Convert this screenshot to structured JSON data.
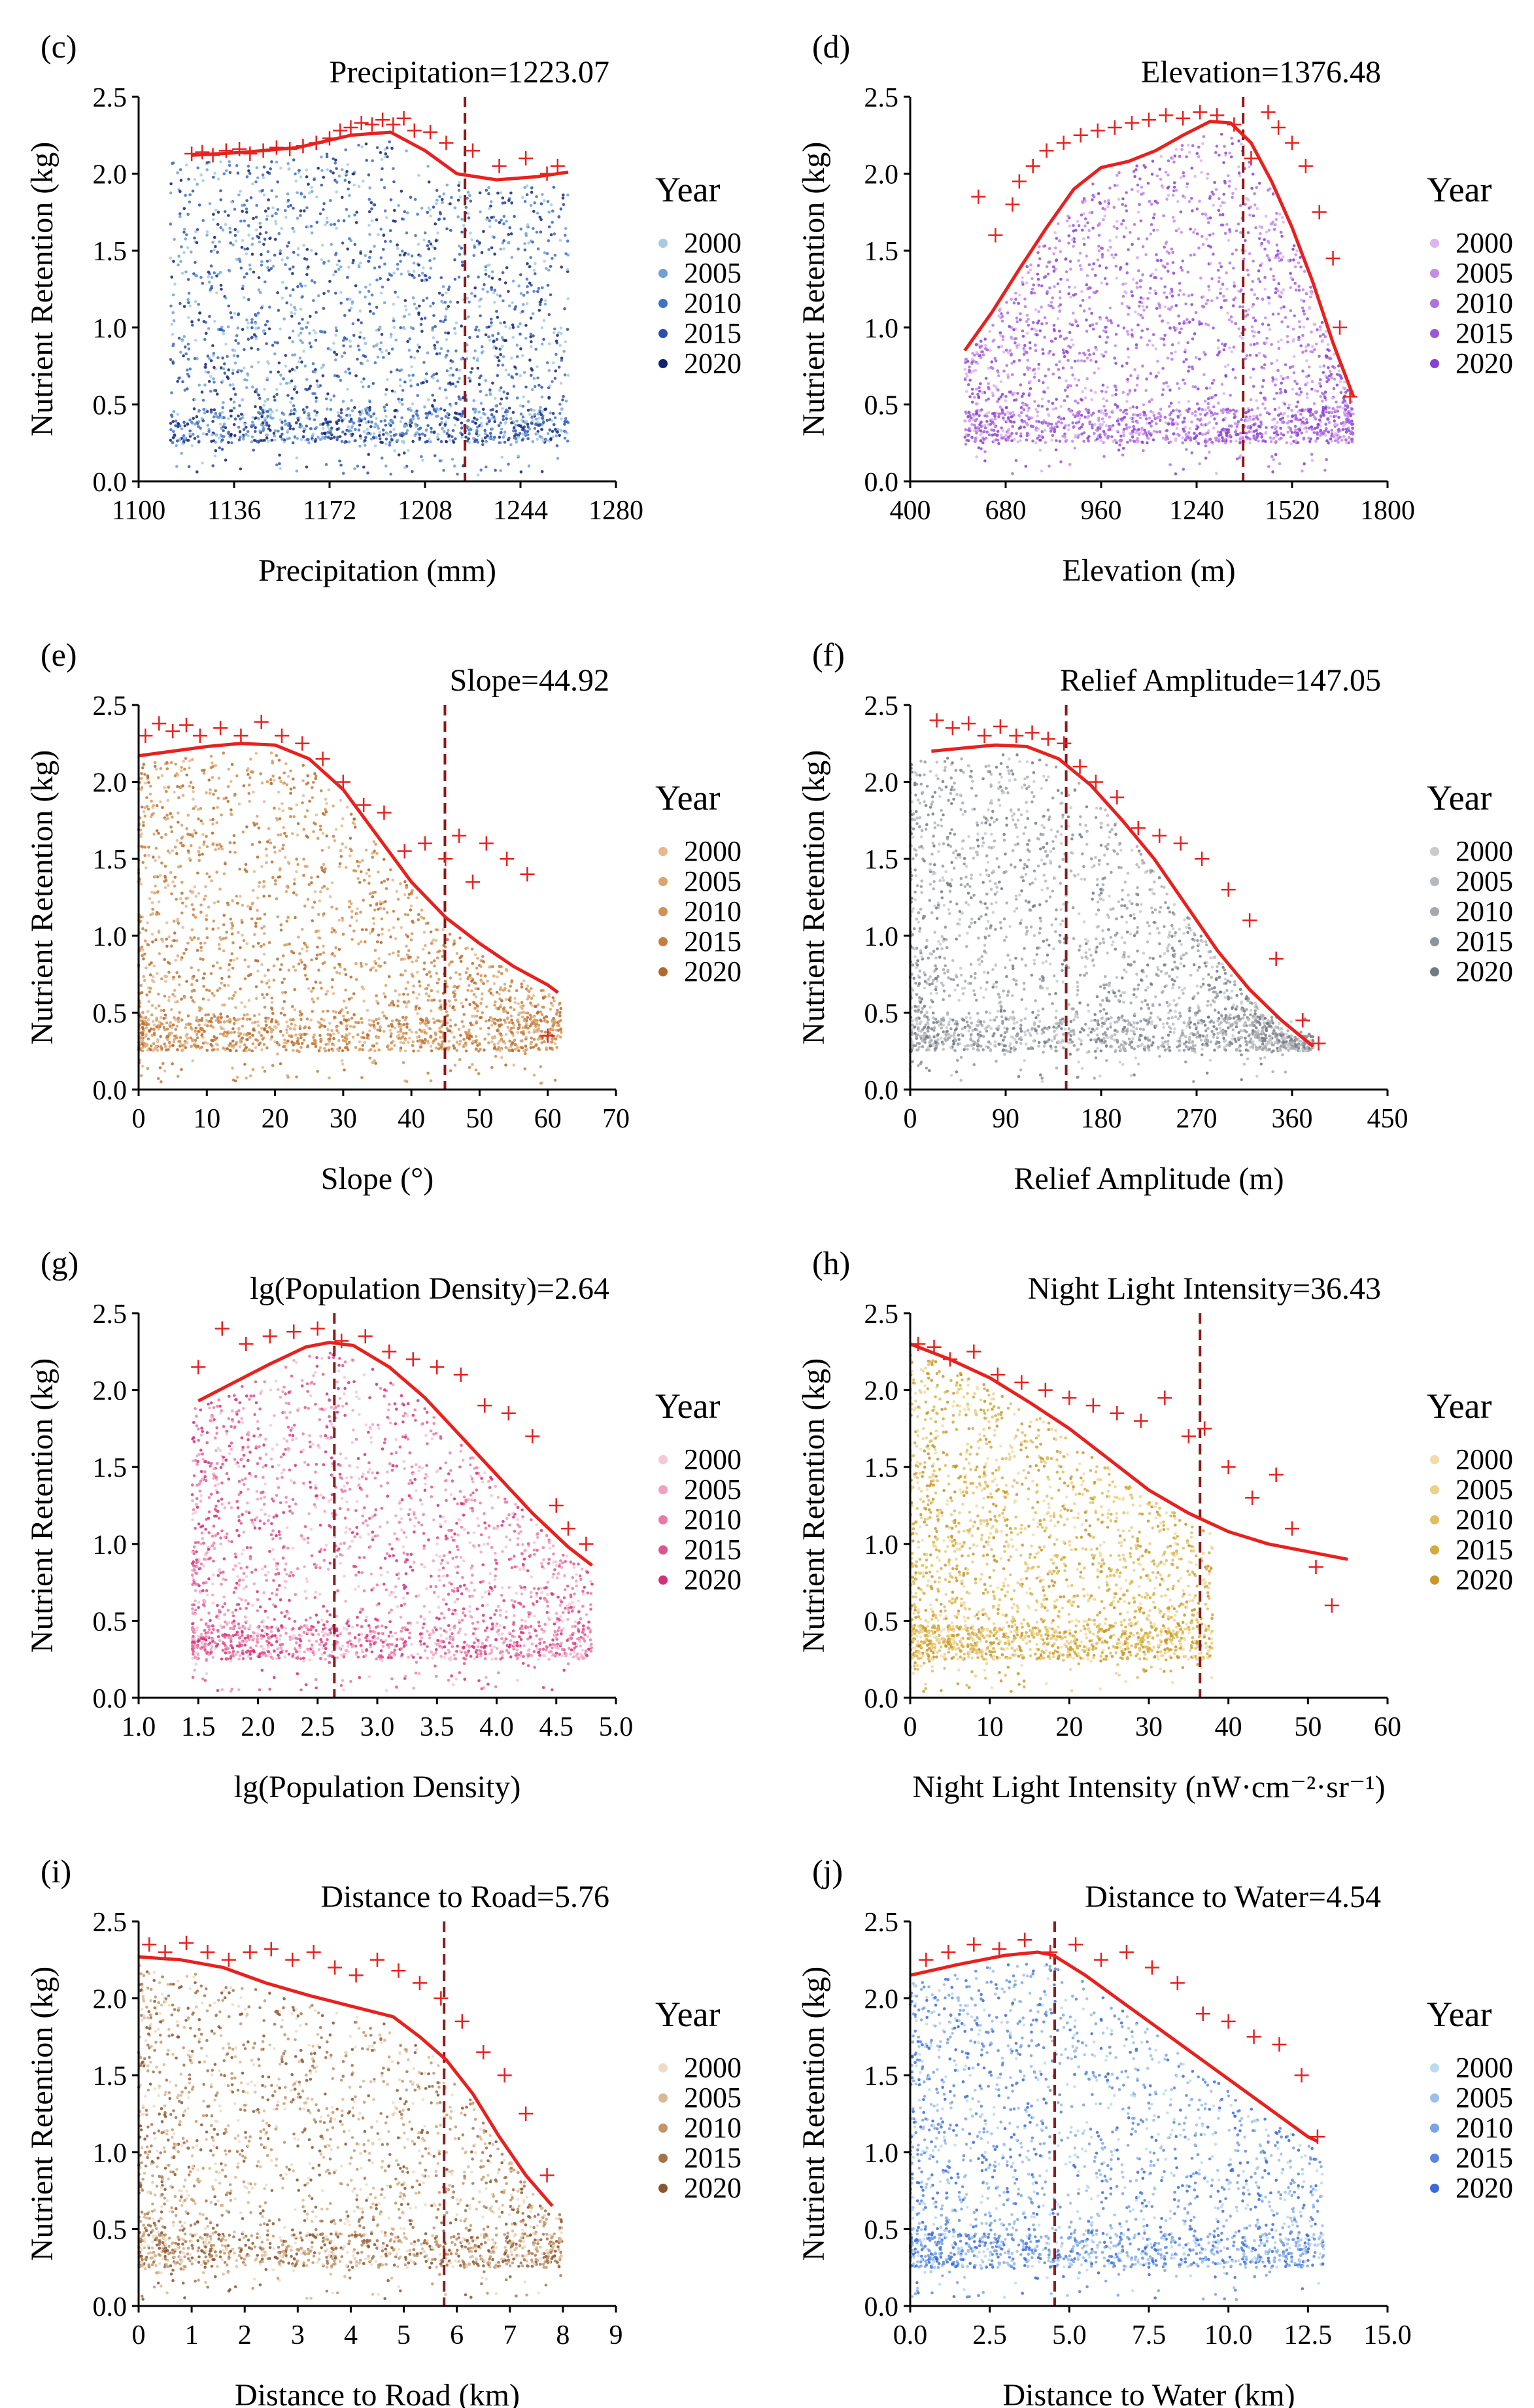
{
  "figure": {
    "ylabel_common": "Nutrient Retention (kg)",
    "legend_title": "Year",
    "years": [
      "2000",
      "2005",
      "2010",
      "2015",
      "2020"
    ],
    "colors": {
      "fit_line": "#e8211f",
      "outlier": "#e8211f",
      "threshold": "#8b1a1a"
    }
  },
  "chart_data": [
    {
      "id": "c",
      "panel_label": "(c)",
      "type": "scatter",
      "title": "Precipitation=1223.07",
      "xlabel": "Precipitation (mm)",
      "ylabel": "Nutrient Retention (kg)",
      "xlim": [
        1100,
        1280
      ],
      "xticks": [
        1100,
        1136,
        1172,
        1208,
        1244,
        1280
      ],
      "xtick_labels": [
        "1100",
        "1136",
        "1172",
        "1208",
        "1244",
        "1280"
      ],
      "ylim": [
        0,
        2.5
      ],
      "yticks": [
        0,
        0.5,
        1,
        1.5,
        2,
        2.5
      ],
      "ytick_labels": [
        "0.0",
        "0.5",
        "1.0",
        "1.5",
        "2.0",
        "2.5"
      ],
      "threshold": 1223.07,
      "point_range": [
        1112,
        1262
      ],
      "legend_colors": [
        "#a6cbe3",
        "#6fa1d6",
        "#4270c4",
        "#2c4ea8",
        "#14236e"
      ],
      "fit_line": {
        "x": [
          1120,
          1140,
          1160,
          1180,
          1195,
          1208,
          1220,
          1235,
          1250,
          1262
        ],
        "y": [
          2.12,
          2.14,
          2.17,
          2.25,
          2.27,
          2.15,
          2.0,
          1.96,
          1.98,
          2.01
        ]
      },
      "outliers": {
        "x": [
          1120,
          1124,
          1128,
          1133,
          1138,
          1142,
          1147,
          1152,
          1157,
          1162,
          1167,
          1172,
          1176,
          1180,
          1184,
          1188,
          1192,
          1196,
          1200,
          1204,
          1210,
          1216,
          1226,
          1236,
          1246,
          1254,
          1258
        ],
        "y": [
          2.13,
          2.14,
          2.12,
          2.15,
          2.16,
          2.13,
          2.15,
          2.17,
          2.16,
          2.18,
          2.2,
          2.23,
          2.28,
          2.3,
          2.33,
          2.32,
          2.35,
          2.32,
          2.36,
          2.28,
          2.27,
          2.2,
          2.15,
          2.05,
          2.1,
          2.0,
          2.05
        ]
      }
    },
    {
      "id": "d",
      "panel_label": "(d)",
      "type": "scatter",
      "title": "Elevation=1376.48",
      "xlabel": "Elevation (m)",
      "ylabel": "Nutrient Retention (kg)",
      "xlim": [
        400,
        1800
      ],
      "xticks": [
        400,
        680,
        960,
        1240,
        1520,
        1800
      ],
      "xtick_labels": [
        "400",
        "680",
        "960",
        "1240",
        "1520",
        "1800"
      ],
      "ylim": [
        0,
        2.5
      ],
      "yticks": [
        0,
        0.5,
        1,
        1.5,
        2,
        2.5
      ],
      "ytick_labels": [
        "0.0",
        "0.5",
        "1.0",
        "1.5",
        "2.0",
        "2.5"
      ],
      "threshold": 1376.48,
      "point_range": [
        560,
        1700
      ],
      "legend_colors": [
        "#dcb4ee",
        "#c58be6",
        "#b16fe0",
        "#9b57d6",
        "#8a3fd4"
      ],
      "fit_line": {
        "x": [
          560,
          640,
          720,
          800,
          880,
          960,
          1040,
          1120,
          1200,
          1280,
          1340,
          1400,
          1460,
          1520,
          1580,
          1640,
          1700
        ],
        "y": [
          0.85,
          1.1,
          1.38,
          1.65,
          1.9,
          2.04,
          2.08,
          2.15,
          2.25,
          2.34,
          2.33,
          2.2,
          1.95,
          1.65,
          1.3,
          0.9,
          0.55
        ]
      },
      "outliers": {
        "x": [
          600,
          650,
          700,
          720,
          760,
          800,
          850,
          900,
          950,
          1000,
          1050,
          1100,
          1150,
          1200,
          1250,
          1300,
          1350,
          1400,
          1450,
          1480,
          1520,
          1560,
          1600,
          1640,
          1660,
          1690
        ],
        "y": [
          1.85,
          1.6,
          1.8,
          1.95,
          2.05,
          2.15,
          2.2,
          2.25,
          2.28,
          2.3,
          2.33,
          2.35,
          2.38,
          2.36,
          2.4,
          2.38,
          2.32,
          2.1,
          2.4,
          2.3,
          2.2,
          2.05,
          1.75,
          1.45,
          1.0,
          0.55
        ]
      }
    },
    {
      "id": "e",
      "panel_label": "(e)",
      "type": "scatter",
      "title": "Slope=44.92",
      "xlabel": "Slope (°)",
      "ylabel": "Nutrient Retention (kg)",
      "xlim": [
        0,
        70
      ],
      "xticks": [
        0,
        10,
        20,
        30,
        40,
        50,
        60,
        70
      ],
      "xtick_labels": [
        "0",
        "10",
        "20",
        "30",
        "40",
        "50",
        "60",
        "70"
      ],
      "ylim": [
        0,
        2.5
      ],
      "yticks": [
        0,
        0.5,
        1,
        1.5,
        2,
        2.5
      ],
      "ytick_labels": [
        "0.0",
        "0.5",
        "1.0",
        "1.5",
        "2.0",
        "2.5"
      ],
      "threshold": 44.92,
      "point_range": [
        0,
        62
      ],
      "legend_colors": [
        "#e6b88f",
        "#dca46e",
        "#d19252",
        "#c47e3c",
        "#b4692a"
      ],
      "fit_line": {
        "x": [
          0,
          5,
          10,
          15,
          20,
          25,
          30,
          35,
          40,
          45,
          50,
          55,
          60,
          61.5
        ],
        "y": [
          2.17,
          2.2,
          2.23,
          2.25,
          2.24,
          2.15,
          1.95,
          1.65,
          1.35,
          1.12,
          0.95,
          0.8,
          0.68,
          0.63
        ]
      },
      "outliers": {
        "x": [
          1,
          3,
          5,
          7,
          9,
          12,
          15,
          18,
          21,
          24,
          27,
          30,
          33,
          36,
          39,
          42,
          45,
          47,
          49,
          51,
          54,
          57,
          60
        ],
        "y": [
          2.3,
          2.38,
          2.33,
          2.37,
          2.3,
          2.35,
          2.3,
          2.39,
          2.3,
          2.25,
          2.15,
          2.0,
          1.85,
          1.8,
          1.55,
          1.6,
          1.5,
          1.65,
          1.35,
          1.6,
          1.5,
          1.4,
          0.35
        ]
      }
    },
    {
      "id": "f",
      "panel_label": "(f)",
      "type": "scatter",
      "title": "Relief Amplitude=147.05",
      "xlabel": "Relief Amplitude (m)",
      "ylabel": "Nutrient Retention (kg)",
      "xlim": [
        0,
        450
      ],
      "xticks": [
        0,
        90,
        180,
        270,
        360,
        450
      ],
      "xtick_labels": [
        "0",
        "90",
        "180",
        "270",
        "360",
        "450"
      ],
      "ylim": [
        0,
        2.5
      ],
      "yticks": [
        0,
        0.5,
        1,
        1.5,
        2,
        2.5
      ],
      "ytick_labels": [
        "0.0",
        "0.5",
        "1.0",
        "1.5",
        "2.0",
        "2.5"
      ],
      "threshold": 147.05,
      "point_range": [
        0,
        380
      ],
      "legend_colors": [
        "#c9cbcd",
        "#b6b9bc",
        "#a5a9ad",
        "#8e939a",
        "#737a85"
      ],
      "fit_line": {
        "x": [
          20,
          50,
          80,
          110,
          140,
          170,
          200,
          230,
          260,
          290,
          320,
          350,
          380
        ],
        "y": [
          2.2,
          2.22,
          2.24,
          2.23,
          2.15,
          1.98,
          1.75,
          1.5,
          1.2,
          0.9,
          0.65,
          0.45,
          0.28
        ]
      },
      "outliers": {
        "x": [
          25,
          40,
          55,
          70,
          85,
          100,
          115,
          130,
          145,
          160,
          175,
          195,
          215,
          235,
          255,
          275,
          300,
          320,
          345,
          370,
          385
        ],
        "y": [
          2.4,
          2.35,
          2.38,
          2.3,
          2.36,
          2.3,
          2.32,
          2.28,
          2.25,
          2.1,
          2.0,
          1.9,
          1.7,
          1.65,
          1.6,
          1.5,
          1.3,
          1.1,
          0.85,
          0.45,
          0.3
        ]
      }
    },
    {
      "id": "g",
      "panel_label": "(g)",
      "type": "scatter",
      "title": "lg(Population Density)=2.64",
      "xlabel": "lg(Population Density)",
      "ylabel": "Nutrient Retention (kg)",
      "xlim": [
        1,
        5
      ],
      "xticks": [
        1,
        1.5,
        2,
        2.5,
        3,
        3.5,
        4,
        4.5,
        5
      ],
      "xtick_labels": [
        "1.0",
        "1.5",
        "2.0",
        "2.5",
        "3.0",
        "3.5",
        "4.0",
        "4.5",
        "5.0"
      ],
      "ylim": [
        0,
        2.5
      ],
      "yticks": [
        0,
        0.5,
        1,
        1.5,
        2,
        2.5
      ],
      "ytick_labels": [
        "0.0",
        "0.5",
        "1.0",
        "1.5",
        "2.0",
        "2.5"
      ],
      "threshold": 2.64,
      "point_range": [
        1.45,
        4.8
      ],
      "legend_colors": [
        "#f6c6d9",
        "#f0a1c0",
        "#e97aa8",
        "#e0548d",
        "#d42f79"
      ],
      "fit_line": {
        "x": [
          1.5,
          1.8,
          2.1,
          2.4,
          2.6,
          2.8,
          3.1,
          3.4,
          3.7,
          4.0,
          4.3,
          4.6,
          4.8
        ],
        "y": [
          1.93,
          2.05,
          2.17,
          2.28,
          2.31,
          2.29,
          2.15,
          1.95,
          1.7,
          1.45,
          1.2,
          0.98,
          0.86
        ]
      },
      "outliers": {
        "x": [
          1.5,
          1.7,
          1.9,
          2.1,
          2.3,
          2.5,
          2.7,
          2.9,
          3.1,
          3.3,
          3.5,
          3.7,
          3.9,
          4.1,
          4.3,
          4.5,
          4.6,
          4.75
        ],
        "y": [
          2.15,
          2.4,
          2.3,
          2.35,
          2.38,
          2.4,
          2.32,
          2.35,
          2.25,
          2.2,
          2.15,
          2.1,
          1.9,
          1.85,
          1.7,
          1.25,
          1.1,
          1.0
        ]
      }
    },
    {
      "id": "h",
      "panel_label": "(h)",
      "type": "scatter",
      "title": "Night Light Intensity=36.43",
      "xlabel": "Night Light Intensity (nW·cm⁻²·sr⁻¹)",
      "ylabel": "Nutrient Retention (kg)",
      "xlim": [
        0,
        60
      ],
      "xticks": [
        0,
        10,
        20,
        30,
        40,
        50,
        60
      ],
      "xtick_labels": [
        "0",
        "10",
        "20",
        "30",
        "40",
        "50",
        "60"
      ],
      "ylim": [
        0,
        2.5
      ],
      "yticks": [
        0,
        0.5,
        1,
        1.5,
        2,
        2.5
      ],
      "ytick_labels": [
        "0.0",
        "0.5",
        "1.0",
        "1.5",
        "2.0",
        "2.5"
      ],
      "threshold": 36.43,
      "point_range": [
        0,
        38
      ],
      "legend_colors": [
        "#f3dca5",
        "#ead08a",
        "#dfbe5e",
        "#d4aa3d",
        "#c8952a"
      ],
      "fit_line": {
        "x": [
          0,
          5,
          10,
          15,
          20,
          25,
          30,
          35,
          40,
          45,
          50,
          55
        ],
        "y": [
          2.3,
          2.2,
          2.08,
          1.92,
          1.75,
          1.55,
          1.35,
          1.2,
          1.08,
          1.0,
          0.95,
          0.9
        ]
      },
      "outliers": {
        "x": [
          1,
          3,
          5,
          8,
          11,
          14,
          17,
          20,
          23,
          26,
          29,
          32,
          35,
          37,
          40,
          43,
          46,
          48,
          51,
          53
        ],
        "y": [
          2.3,
          2.28,
          2.2,
          2.25,
          2.1,
          2.05,
          2.0,
          1.95,
          1.9,
          1.85,
          1.8,
          1.95,
          1.7,
          1.75,
          1.5,
          1.3,
          1.45,
          1.1,
          0.85,
          0.6
        ]
      }
    },
    {
      "id": "i",
      "panel_label": "(i)",
      "type": "scatter",
      "title": "Distance to Road=5.76",
      "xlabel": "Distance to Road (km)",
      "ylabel": "Nutrient Retention (kg)",
      "xlim": [
        0,
        9
      ],
      "xticks": [
        0,
        1,
        2,
        3,
        4,
        5,
        6,
        7,
        8,
        9
      ],
      "xtick_labels": [
        "0",
        "1",
        "2",
        "3",
        "4",
        "5",
        "6",
        "7",
        "8",
        "9"
      ],
      "ylim": [
        0,
        2.5
      ],
      "yticks": [
        0,
        0.5,
        1,
        1.5,
        2,
        2.5
      ],
      "ytick_labels": [
        "0.0",
        "0.5",
        "1.0",
        "1.5",
        "2.0",
        "2.5"
      ],
      "threshold": 5.76,
      "point_range": [
        0,
        8
      ],
      "legend_colors": [
        "#eddcc4",
        "#d9b994",
        "#c4956b",
        "#a6724a",
        "#8a5530"
      ],
      "fit_line": {
        "x": [
          0,
          0.8,
          1.6,
          2.4,
          3.2,
          4.0,
          4.8,
          5.3,
          5.8,
          6.3,
          6.8,
          7.3,
          7.8
        ],
        "y": [
          2.27,
          2.25,
          2.2,
          2.1,
          2.02,
          1.95,
          1.88,
          1.75,
          1.6,
          1.38,
          1.1,
          0.85,
          0.65
        ]
      },
      "outliers": {
        "x": [
          0.2,
          0.5,
          0.9,
          1.3,
          1.7,
          2.1,
          2.5,
          2.9,
          3.3,
          3.7,
          4.1,
          4.5,
          4.9,
          5.3,
          5.7,
          6.1,
          6.5,
          6.9,
          7.3,
          7.7
        ],
        "y": [
          2.35,
          2.3,
          2.36,
          2.3,
          2.25,
          2.3,
          2.32,
          2.25,
          2.3,
          2.2,
          2.15,
          2.25,
          2.18,
          2.1,
          2.0,
          1.85,
          1.65,
          1.5,
          1.25,
          0.85
        ]
      }
    },
    {
      "id": "j",
      "panel_label": "(j)",
      "type": "scatter",
      "title": "Distance to Water=4.54",
      "xlabel": "Distance to Water (km)",
      "ylabel": "Nutrient Retention (kg)",
      "xlim": [
        0,
        15
      ],
      "xticks": [
        0,
        2.5,
        5,
        7.5,
        10,
        12.5,
        15
      ],
      "xtick_labels": [
        "0.0",
        "2.5",
        "5.0",
        "7.5",
        "10.0",
        "12.5",
        "15.0"
      ],
      "ylim": [
        0,
        2.5
      ],
      "yticks": [
        0,
        0.5,
        1,
        1.5,
        2,
        2.5
      ],
      "ytick_labels": [
        "0.0",
        "0.5",
        "1.0",
        "1.5",
        "2.0",
        "2.5"
      ],
      "threshold": 4.54,
      "point_range": [
        0,
        13
      ],
      "legend_colors": [
        "#bcdbec",
        "#9cc0ea",
        "#7ba4e2",
        "#5a87dc",
        "#3b6ad8"
      ],
      "fit_line": {
        "x": [
          0,
          1.5,
          3,
          4,
          4.5,
          5.5,
          6.5,
          7.5,
          8.5,
          9.5,
          10.5,
          11.5,
          12.5,
          12.8
        ],
        "y": [
          2.15,
          2.22,
          2.28,
          2.3,
          2.28,
          2.15,
          2.0,
          1.85,
          1.7,
          1.55,
          1.4,
          1.25,
          1.1,
          1.07
        ]
      },
      "outliers": {
        "x": [
          0.5,
          1.2,
          2,
          2.8,
          3.6,
          4.4,
          5.2,
          6,
          6.8,
          7.6,
          8.4,
          9.2,
          10,
          10.8,
          11.6,
          12.3,
          12.8
        ],
        "y": [
          2.25,
          2.3,
          2.35,
          2.32,
          2.38,
          2.3,
          2.35,
          2.25,
          2.3,
          2.2,
          2.1,
          1.9,
          1.85,
          1.75,
          1.7,
          1.5,
          1.1
        ]
      }
    }
  ]
}
